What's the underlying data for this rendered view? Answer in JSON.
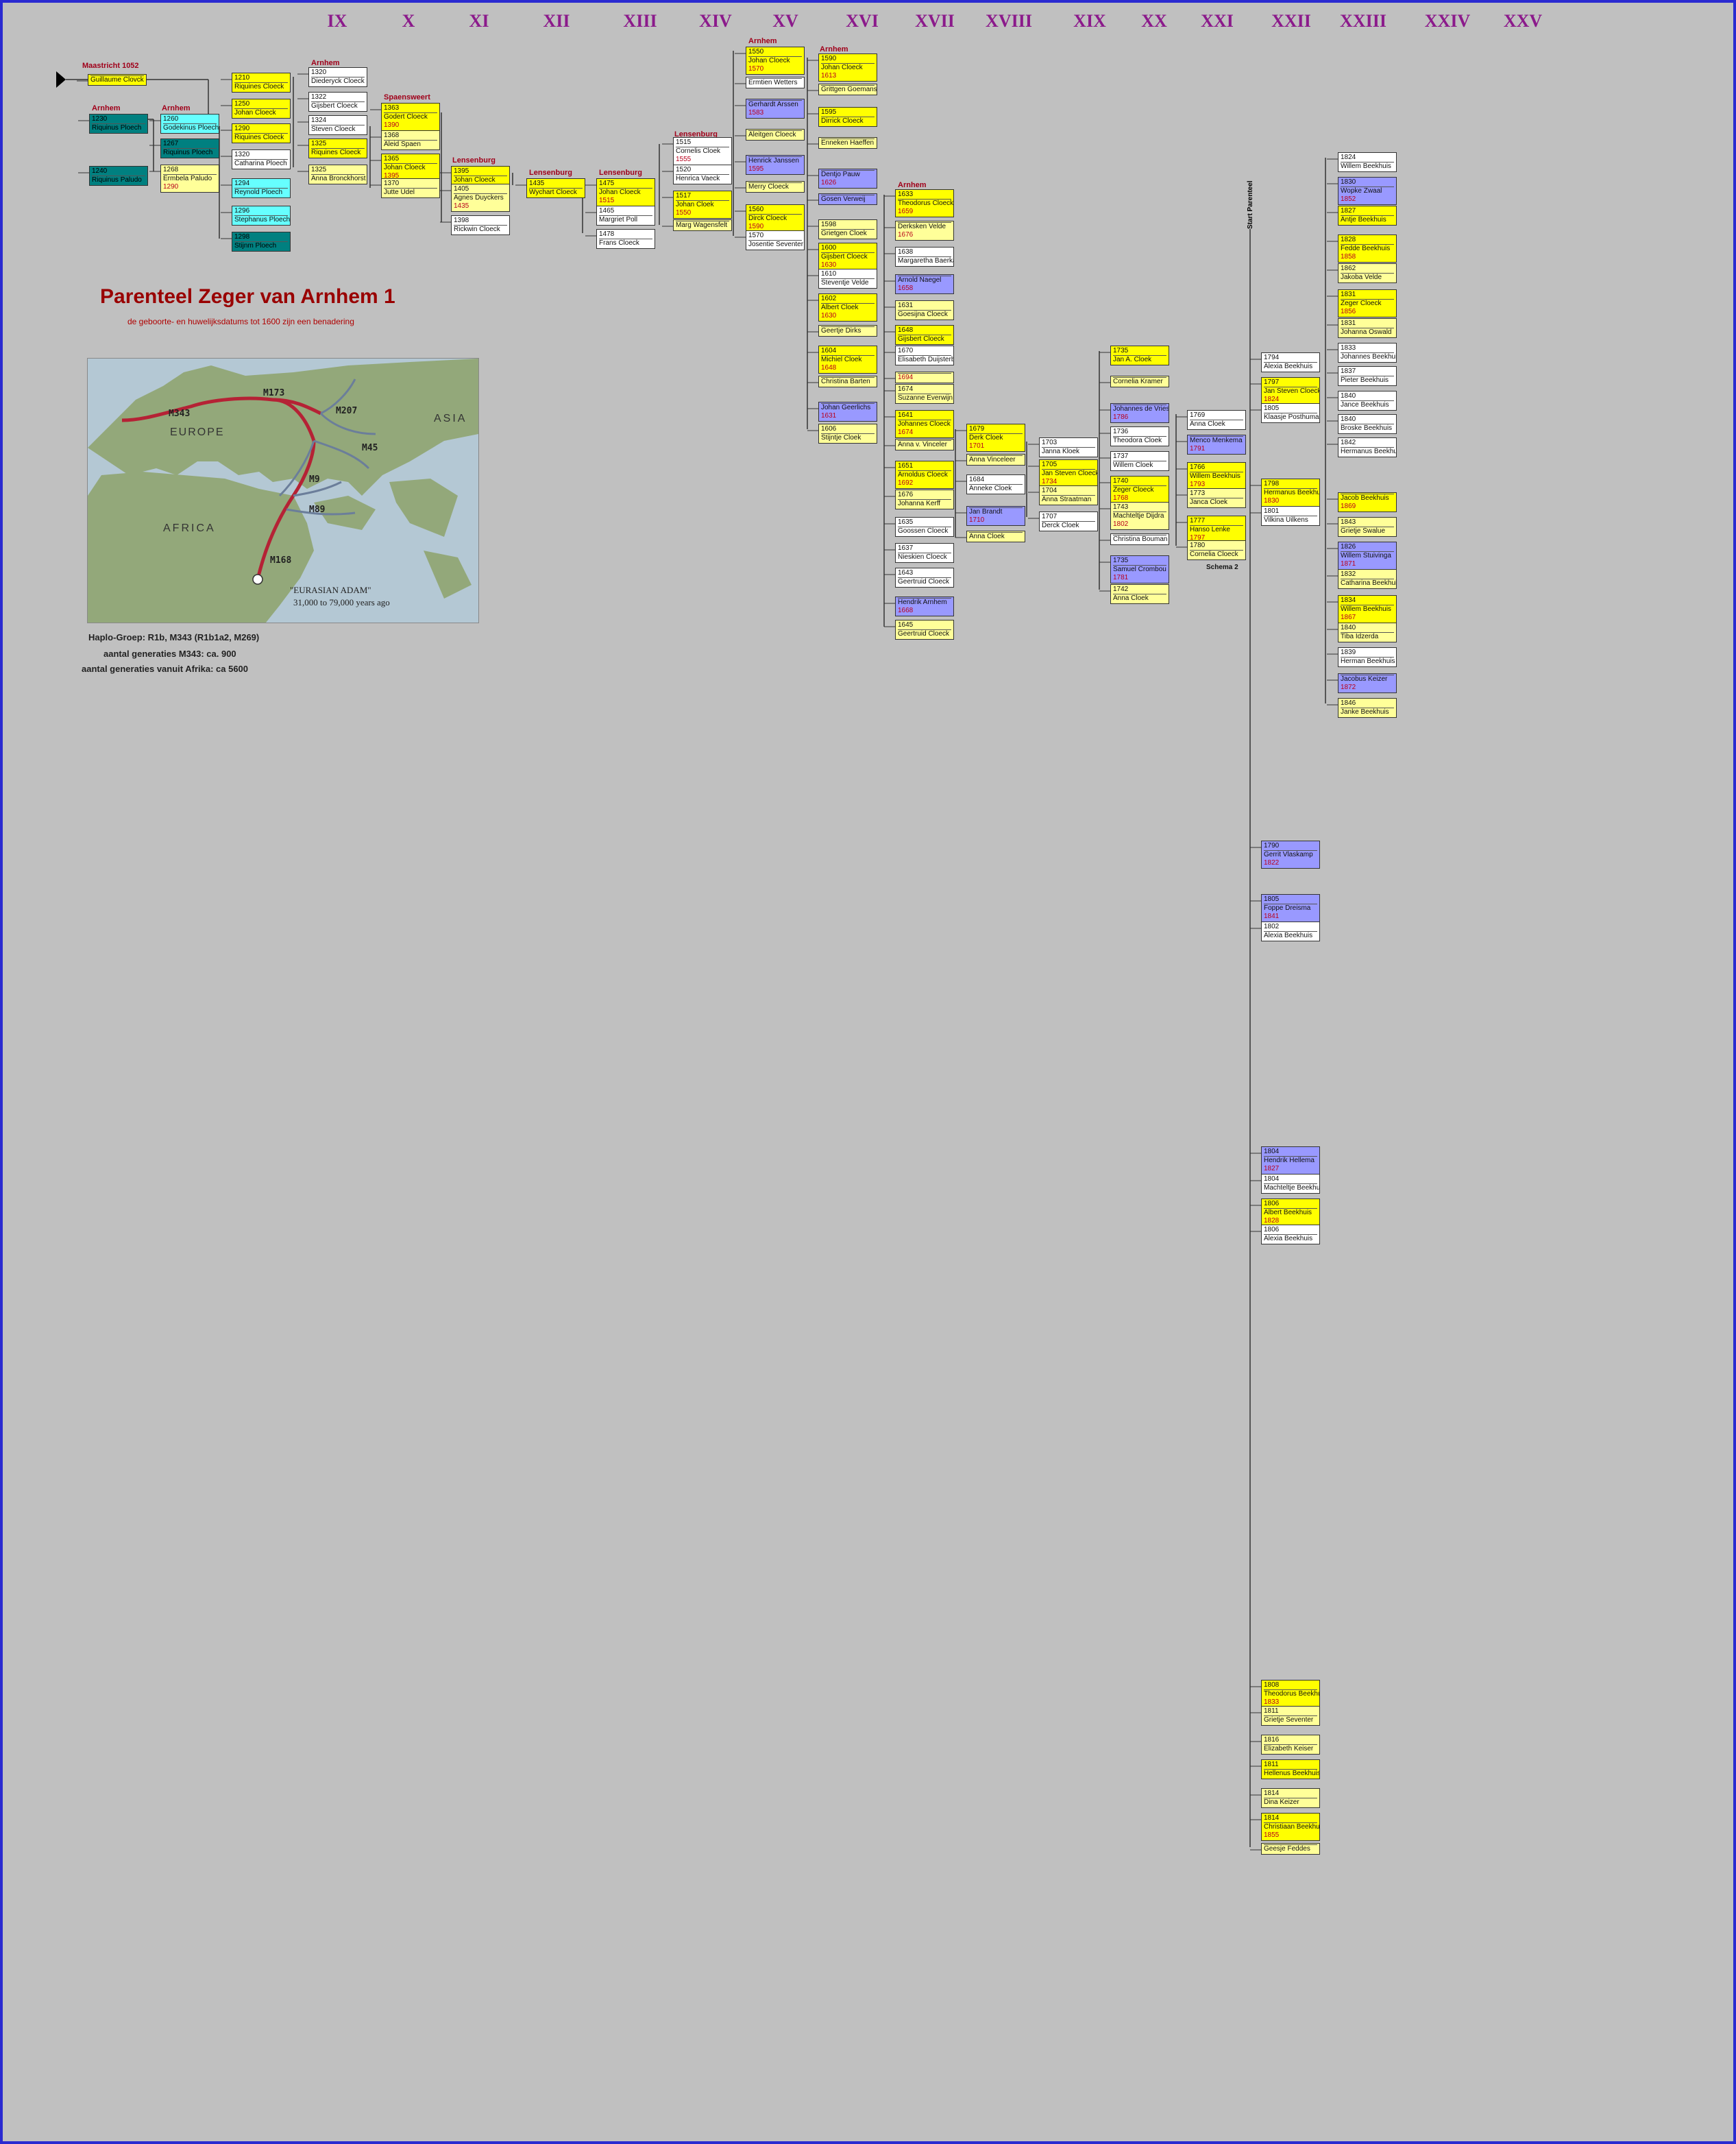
{
  "title": "Parenteel  Zeger van Arnhem  1",
  "subtitle": "de geboorte- en huwelijksdatums tot 1600 zijn een benadering",
  "generations": [
    "IX",
    "X",
    "XI",
    "XII",
    "XIII",
    "XIV",
    "XV",
    "XVI",
    "XVII",
    "XVIII",
    "XIX",
    "XX",
    "XXI",
    "XXII",
    "XXIII",
    "XXIV",
    "XXV"
  ],
  "places": {
    "maastricht": "Maastricht 1052",
    "arnhem": "Arnhem",
    "spaensweert": "Spaensweert",
    "lensenburg": "Lensenburg"
  },
  "map": {
    "europe": "EUROPE",
    "asia": "ASIA",
    "africa": "AFRICA",
    "eurasian_adam": "\"EURASIAN ADAM\"",
    "years_ago": "31,000 to 79,000 years ago",
    "markers": [
      "M343",
      "M173",
      "M207",
      "M45",
      "M9",
      "M89",
      "M168"
    ]
  },
  "haplo": {
    "group": "Haplo-Groep: R1b, M343 (R1b1a2, M269)",
    "generations_m343": "aantal generaties M343: ca. 900",
    "generations_africa": "aantal generaties vanuit Afrika: ca 5600"
  },
  "labels": {
    "start_parenteel": "Start Parenteel",
    "schema2": "Schema 2"
  },
  "persons": {
    "guillaume": {
      "name": "Guillaume Clovck"
    },
    "p1230": {
      "year": "1230",
      "name": "Riquinus Ploech"
    },
    "p1240": {
      "year": "1240",
      "name": "Riquinus Paludo"
    },
    "p1260": {
      "year": "1260",
      "name": "Godekinus Ploech"
    },
    "p1267": {
      "year": "1267",
      "name": "Riquinus Ploech"
    },
    "p1268": {
      "year": "1268",
      "name": "Ermbela Paludo",
      "marriage": "1290"
    },
    "p1210": {
      "year": "1210",
      "name": "Riquines Cloeck"
    },
    "p1250": {
      "year": "1250",
      "name": "Johan Cloeck"
    },
    "p1290a": {
      "year": "1290",
      "name": "Riquines Cloeck"
    },
    "p1320a": {
      "year": "1320",
      "name": "Catharina Ploech"
    },
    "p1294": {
      "year": "1294",
      "name": "Reynold Ploech"
    },
    "p1296": {
      "year": "1296",
      "name": "Stephanus Ploech"
    },
    "p1298": {
      "year": "1298",
      "name": "Stijnm Ploech"
    },
    "p1320b": {
      "year": "1320",
      "name": "Diederyck Cloeck"
    },
    "p1322": {
      "year": "1322",
      "name": "Gijsbert Cloeck"
    },
    "p1324": {
      "year": "1324",
      "name": "Steven Cloeck"
    },
    "p1325a": {
      "year": "1325",
      "name": "Riquines Cloeck"
    },
    "p1325b": {
      "year": "1325",
      "name": "Anna Bronckhorst"
    },
    "p1363": {
      "year": "1363",
      "name": "Godert Cloeck",
      "marriage": "1390"
    },
    "p1368": {
      "year": "1368",
      "name": "Aleid Spaen"
    },
    "p1365": {
      "year": "1365",
      "name": "Johan Cloeck",
      "marriage": "1395"
    },
    "p1370": {
      "year": "1370",
      "name": "Jutte Udel"
    },
    "p1395": {
      "year": "1395",
      "name": "Johan Cloeck"
    },
    "p1405": {
      "year": "1405",
      "marriage": "1435",
      "name": "Agnes Duyckers"
    },
    "p1398": {
      "year": "1398",
      "name": "Rickwin Cloeck"
    },
    "p1435": {
      "year": "1435",
      "name": "Wychart Cloeck"
    },
    "p1475": {
      "year": "1475",
      "name": "Johan Cloeck",
      "marriage": "1515"
    },
    "p1465": {
      "year": "1465",
      "name": "Margriet Poll"
    },
    "p1478": {
      "year": "1478",
      "name": "Frans Cloeck"
    },
    "p1515": {
      "year": "1515",
      "name": "Cornelis Cloek",
      "marriage": "1555"
    },
    "p1520": {
      "year": "1520",
      "name": "Henrica Vaeck"
    },
    "p1517": {
      "year": "1517",
      "name": "Johan Cloek",
      "marriage": "1550"
    },
    "p1550m": {
      "name": "Marg Wagensfelt"
    },
    "p1550": {
      "year": "1550",
      "name": "Johan Cloeck",
      "marriage": "1570"
    },
    "p_ermwet": {
      "name": "Ermtien Wetters"
    },
    "p_gerhardt": {
      "name": "Gerhardt Arssen",
      "marriage": "1583"
    },
    "p_aleit": {
      "name": "Aleitgen Cloeck"
    },
    "p_henrick": {
      "name": "Henrick Janssen",
      "marriage": "1595"
    },
    "p_merry": {
      "name": "Merry Cloeck"
    },
    "p1560": {
      "year": "1560",
      "name": "Dirck Cloeck",
      "marriage": "1590"
    },
    "p1570": {
      "year": "1570",
      "name": "Josentie Seventer"
    },
    "p1590": {
      "year": "1590",
      "name": "Johan Cloeck",
      "marriage": "1613"
    },
    "p_grietgen": {
      "name": "Grittgen Goemans"
    },
    "p1595": {
      "year": "1595",
      "name": "Dirrick Cloeck"
    },
    "p_enneken": {
      "name": "Enneken Haeffen"
    },
    "p_dentjo": {
      "name": "Dentjo Pauw",
      "marriage": "1626"
    },
    "p_gosen": {
      "name": "Gosen Verweij"
    },
    "p1598": {
      "year": "1598",
      "name": "Grietgen Cloek"
    },
    "p1600": {
      "year": "1600",
      "name": "Gijsbert Cloeck",
      "marriage": "1630"
    },
    "p1610": {
      "year": "1610",
      "name": "Steventje Velde"
    },
    "p1602": {
      "year": "1602",
      "name": "Albert Cloek",
      "marriage": "1630"
    },
    "p_geertje": {
      "name": "Geertje Dirks"
    },
    "p1604": {
      "year": "1604",
      "name": "Michiel Cloek",
      "marriage": "1648"
    },
    "p_christina": {
      "name": "Christina Barten"
    },
    "p_johangeer": {
      "name": "Johan Geerlichs",
      "marriage": "1631"
    },
    "p1606": {
      "year": "1606",
      "name": "Stijntje Cloek"
    },
    "p1633": {
      "year": "1633",
      "name": "Theodorus Cloeck",
      "marriage": "1659"
    },
    "p_derksken": {
      "name": "Derksken Velde",
      "marriage": "1676"
    },
    "p1638": {
      "year": "1638",
      "name": "Margaretha Baerkan"
    },
    "p_arnold": {
      "name": "Arnold Naegel",
      "marriage": "1658"
    },
    "p1631": {
      "year": "1631",
      "name": "Goesijna Cloeck"
    },
    "p1648": {
      "year": "1648",
      "name": "Gijsbert Cloeck"
    },
    "p1670": {
      "year": "1670",
      "name": "Elisabeth Duijsterbeld"
    },
    "p1694": {
      "name": "",
      "marriage": "1694"
    },
    "p1674s": {
      "year": "1674",
      "name": "Suzanne Everwijn"
    },
    "p1641": {
      "year": "1641",
      "name": "Johannes Cloeck",
      "marriage": "1674"
    },
    "p_annav": {
      "name": "Anna v. Vinceler"
    },
    "p1651": {
      "year": "1651",
      "name": "Arnoldus Cloeck",
      "marriage": "1692"
    },
    "p1676": {
      "year": "1676",
      "name": "Johanna Kerff"
    },
    "p1635": {
      "year": "1635",
      "name": "Goossen Cloeck"
    },
    "p1637": {
      "year": "1637",
      "name": "Nieskien Cloeck"
    },
    "p1643": {
      "year": "1643",
      "name": "Geertruid Cloeck"
    },
    "p_hendrikarn": {
      "name": "Hendrik Arnhem",
      "marriage": "1668"
    },
    "p1645": {
      "year": "1645",
      "name": "Geertruid Cloeck"
    },
    "p1679": {
      "year": "1679",
      "name": "Derk Cloek",
      "marriage": "1701"
    },
    "p_annavinc": {
      "name": "Anna Vinceleer"
    },
    "p1684": {
      "year": "1684",
      "name": "Anneke Cloek"
    },
    "p_janbrandt": {
      "name": "Jan Brandt",
      "marriage": "1710"
    },
    "p_annacloek": {
      "name": "Anna Cloek"
    },
    "p1703": {
      "year": "1703",
      "name": "Janna Kloek"
    },
    "p1705": {
      "year": "1705",
      "name": "Jan Steven Cloeck",
      "marriage": "1734"
    },
    "p1704": {
      "year": "1704",
      "name": "Anna Straatman"
    },
    "p1707": {
      "year": "1707",
      "name": "Derck Cloek"
    },
    "p1735": {
      "year": "1735",
      "name": "Jan A. Cloek"
    },
    "p_cornelia": {
      "name": "Cornelia Kramer"
    },
    "p_johannesvr": {
      "name": "Johannes de Vries",
      "marriage": "1786"
    },
    "p1736": {
      "year": "1736",
      "name": "Theodora Cloek"
    },
    "p1737": {
      "year": "1737",
      "name": "Willem Cloek"
    },
    "p1740": {
      "year": "1740",
      "name": "Zeger Cloeck",
      "marriage": "1768"
    },
    "p1743": {
      "year": "1743",
      "name": "Machteltje Dijdra",
      "marriage": "1802"
    },
    "p_christinab": {
      "name": "Christina Bouman"
    },
    "p1735b": {
      "year": "1735",
      "name": "Samuel Crombou",
      "marriage": "1781"
    },
    "p1742": {
      "year": "1742",
      "name": "Anna Cloek"
    },
    "p1769": {
      "year": "1769",
      "name": "Anna Cloek"
    },
    "p_menco": {
      "name": "Menco Menkema",
      "marriage": "1791"
    },
    "p1766": {
      "year": "1766",
      "name": "Willem Beekhuis",
      "marriage": "1793"
    },
    "p1773": {
      "year": "1773",
      "name": "Janca Cloek"
    },
    "p1777": {
      "year": "1777",
      "name": "Hanso Lenke",
      "marriage": "1797"
    },
    "p1780": {
      "year": "1780",
      "name": "Cornelia Cloeck"
    },
    "p1794": {
      "year": "1794",
      "name": "Alexia Beekhuis"
    },
    "p1797": {
      "year": "1797",
      "name": "Jan Steven Cloeck",
      "marriage": "1824"
    },
    "p1805k": {
      "year": "1805",
      "name": "Klaasje Posthuma"
    },
    "p1798": {
      "year": "1798",
      "name": "Hermanus Beekhuis",
      "marriage": "1830"
    },
    "p1801": {
      "year": "1801",
      "name": "Vilkina Uilkens"
    },
    "p1790": {
      "year": "1790",
      "name": "Gerrit Vlaskamp",
      "marriage": "1822"
    },
    "p1805f": {
      "year": "1805",
      "name": "Foppe Dreisma",
      "marriage": "1841"
    },
    "p1802": {
      "year": "1802",
      "name": "Alexia Beekhuis"
    },
    "p1804": {
      "year": "1804",
      "name": "Hendrik Hellema",
      "marriage": "1827"
    },
    "p1804m": {
      "year": "1804",
      "name": "Machteltje Beekhuis"
    },
    "p1806": {
      "year": "1806",
      "name": "Albert Beekhuis",
      "marriage": "1828"
    },
    "p1806a": {
      "year": "1806",
      "name": "Alexia Beekhuis"
    },
    "p1808": {
      "year": "1808",
      "name": "Theodorus Beekhuis",
      "marriage": "1833"
    },
    "p1811": {
      "year": "1811",
      "name": "Grietje Seventer"
    },
    "p1816": {
      "year": "1816",
      "name": "Elizabeth Keiser"
    },
    "p1811h": {
      "year": "1811",
      "name": "Hellenus Beekhuis"
    },
    "p1814": {
      "year": "1814",
      "name": "Dina Keizer"
    },
    "p1814c": {
      "year": "1814",
      "name": "Christiaan Beekhuis",
      "marriage": "1855"
    },
    "p_geesje": {
      "name": "Geesje Feddes"
    },
    "p1824": {
      "year": "1824",
      "name": "Willem Beekhuis"
    },
    "p1830": {
      "year": "1830",
      "name": "Wopke Zwaal",
      "marriage": "1852"
    },
    "p1827": {
      "year": "1827",
      "name": "Antje Beekhuis"
    },
    "p1828": {
      "year": "1828",
      "name": "Fedde Beekhuis",
      "marriage": "1858"
    },
    "p1862": {
      "year": "1862",
      "name": "Jakoba Velde"
    },
    "p1831": {
      "year": "1831",
      "name": "Zeger Cloeck",
      "marriage": "1856"
    },
    "p1831j": {
      "year": "1831",
      "name": "Johanna Oswald"
    },
    "p1833": {
      "year": "1833",
      "name": "Johannes Beekhuis"
    },
    "p1837": {
      "year": "1837",
      "name": "Pieter Beekhuis"
    },
    "p1840": {
      "year": "1840",
      "name": "Jance Beekhuis"
    },
    "p1840b": {
      "year": "1840",
      "name": "Broske Beekhuis"
    },
    "p1842": {
      "year": "1842",
      "name": "Hermanus Beekhuis"
    },
    "p_jacob": {
      "name": "Jacob Beekhuis",
      "marriage": "1869"
    },
    "p1843": {
      "year": "1843",
      "name": "Grietje Swalue"
    },
    "p1826": {
      "year": "1826",
      "name": "Willem Stuivinga",
      "marriage": "1871"
    },
    "p1832": {
      "year": "1832",
      "name": "Catharina Beekhuis"
    },
    "p1834": {
      "year": "1834",
      "name": "Willem Beekhuis",
      "marriage": "1867"
    },
    "p1840t": {
      "year": "1840",
      "name": "Tiba Idzerda"
    },
    "p1839": {
      "year": "1839",
      "name": "Herman Beekhuis"
    },
    "p_jacobus": {
      "name": "Jacobus Keizer",
      "marriage": "1872"
    },
    "p1846": {
      "year": "1846",
      "name": "Janke Beekhuis"
    }
  }
}
